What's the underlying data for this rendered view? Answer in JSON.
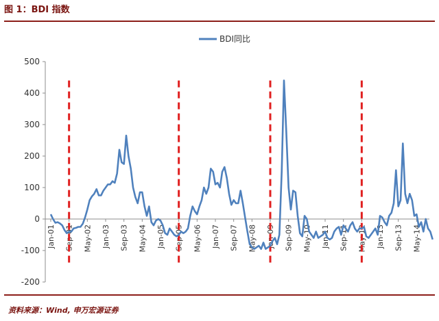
{
  "figure_title": "图 1：BDI 指数",
  "source_note": "资料来源：Wind, 申万宏源证券",
  "colors": {
    "series": "#4f81bd",
    "marker": "#e02020",
    "rule": "#8c1d18",
    "title": "#7a1410"
  },
  "chart_data": {
    "type": "line",
    "title": "",
    "xlabel": "",
    "ylabel": "",
    "ylim": [
      -200,
      500
    ],
    "yticks": [
      -200,
      -100,
      0,
      100,
      200,
      300,
      400,
      500
    ],
    "grid": false,
    "legend": "top-center",
    "x_tick_labels": [
      "Jan-01",
      "Sep-01",
      "May-02",
      "Jan-03",
      "Sep-03",
      "May-04",
      "Jan-05",
      "Sep-05",
      "May-06",
      "Jan-07",
      "Sep-07",
      "May-08",
      "Jan-09",
      "Sep-09",
      "May-10",
      "Jan-11",
      "Sep-11",
      "May-12",
      "Jan-13",
      "Sep-13",
      "May-14"
    ],
    "series": [
      {
        "name": "BDI同比",
        "values": [
          15,
          0,
          -12,
          -10,
          -14,
          -20,
          -35,
          -45,
          -40,
          -40,
          -30,
          -28,
          -25,
          -25,
          -15,
          5,
          30,
          60,
          72,
          80,
          95,
          75,
          75,
          90,
          100,
          110,
          110,
          120,
          115,
          145,
          220,
          180,
          175,
          265,
          200,
          160,
          100,
          70,
          50,
          85,
          85,
          40,
          10,
          40,
          -10,
          -20,
          -5,
          0,
          -5,
          -20,
          -45,
          -50,
          -30,
          -40,
          -50,
          -55,
          -50,
          -40,
          -45,
          -40,
          -30,
          10,
          40,
          25,
          15,
          40,
          60,
          100,
          80,
          100,
          160,
          150,
          110,
          115,
          100,
          150,
          165,
          130,
          80,
          45,
          60,
          50,
          50,
          90,
          50,
          5,
          -40,
          -80,
          -90,
          -95,
          -90,
          -85,
          -95,
          -75,
          -95,
          -90,
          -85,
          -70,
          -60,
          -80,
          -50,
          150,
          440,
          280,
          100,
          30,
          90,
          85,
          10,
          -45,
          -55,
          10,
          0,
          -40,
          -50,
          -60,
          -40,
          -60,
          -55,
          -50,
          -40,
          -60,
          -65,
          -60,
          -40,
          -30,
          -25,
          -50,
          -20,
          -30,
          -40,
          -20,
          -10,
          -30,
          -40,
          -30,
          -30,
          -25,
          -55,
          -60,
          -50,
          -40,
          -30,
          -50,
          10,
          5,
          -10,
          -20,
          10,
          20,
          50,
          155,
          40,
          60,
          240,
          80,
          50,
          80,
          60,
          10,
          15,
          -25,
          -10,
          -40,
          0,
          -30,
          -40,
          -65
        ]
      }
    ],
    "vertical_markers": [
      "Sep-01",
      "Sep-05",
      "Jan-09",
      "May-12"
    ]
  }
}
